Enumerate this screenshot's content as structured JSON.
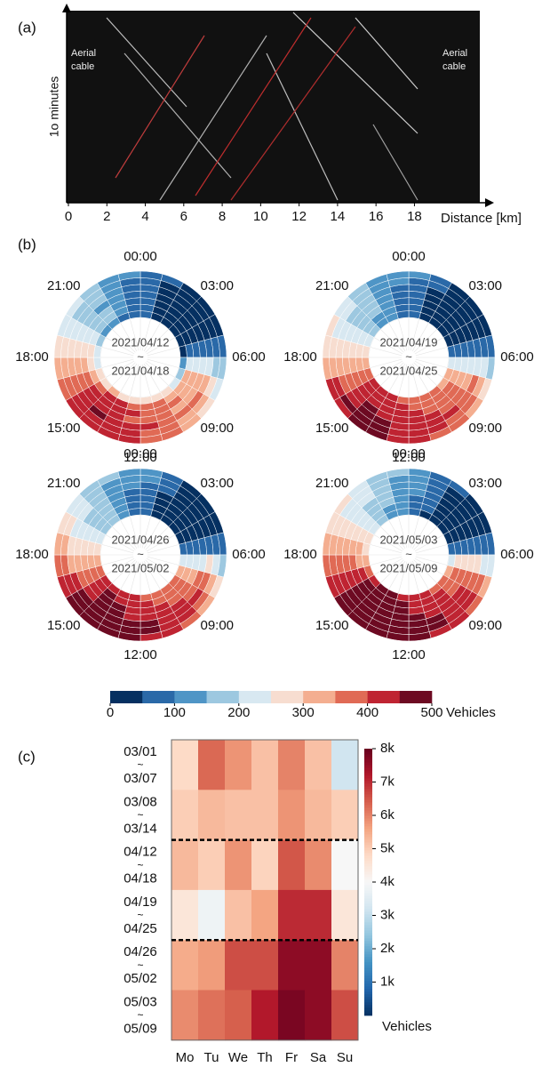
{
  "chart_data": [
    {
      "type": "image",
      "label": "(a)",
      "ylabel": "1o minutes",
      "xlabel": "Distance [km]",
      "xlim": [
        0,
        21.4
      ],
      "xticks": [
        0,
        2,
        4,
        6,
        8,
        10,
        12,
        14,
        16,
        18
      ],
      "annotations": [
        [
          "Aerial",
          "cable"
        ],
        [
          "Aerial",
          "cable"
        ]
      ]
    },
    {
      "type": "polar_heatmap",
      "label": "(b)",
      "clim": [
        0,
        500
      ],
      "cticks": [
        0,
        100,
        200,
        300,
        400,
        500
      ],
      "cbar_label": "Vehicles",
      "colors": [
        "#053061",
        "#2a69a8",
        "#4f95c6",
        "#9dc8e0",
        "#d8e8f1",
        "#f7ddd0",
        "#f4ae90",
        "#e06a55",
        "#bf2432",
        "#6d0a22"
      ],
      "hour_labels": [
        {
          "value": 0,
          "label": "00:00"
        },
        {
          "value": 3,
          "label": "03:00"
        },
        {
          "value": 6,
          "label": "06:00"
        },
        {
          "value": 9,
          "label": "09:00"
        },
        {
          "value": 12,
          "label": "12:00"
        },
        {
          "value": 15,
          "label": "15:00"
        },
        {
          "value": 18,
          "label": "18:00"
        },
        {
          "value": 21,
          "label": "21:00"
        }
      ],
      "charts": [
        {
          "start": "2021/04/12",
          "mark": "~",
          "end": "2021/04/18",
          "rings": [
            [
              50,
              30,
              20,
              20,
              20,
              40,
              120,
              180,
              230,
              250,
              260,
              270,
              280,
              290,
              300,
              290,
              260,
              230,
              200,
              170,
              140,
              120,
              90,
              70
            ],
            [
              60,
              30,
              20,
              20,
              30,
              60,
              200,
              300,
              330,
              340,
              360,
              370,
              380,
              400,
              410,
              390,
              340,
              290,
              250,
              200,
              170,
              150,
              110,
              80
            ],
            [
              60,
              30,
              20,
              20,
              30,
              60,
              210,
              310,
              340,
              350,
              370,
              380,
              400,
              420,
              430,
              400,
              350,
              300,
              260,
              210,
              180,
              150,
              110,
              80
            ],
            [
              70,
              40,
              20,
              20,
              30,
              60,
              200,
              300,
              330,
              340,
              360,
              380,
              390,
              410,
              420,
              400,
              350,
              300,
              250,
              200,
              170,
              140,
              100,
              80
            ],
            [
              70,
              40,
              20,
              20,
              30,
              70,
              220,
              320,
              350,
              370,
              380,
              400,
              420,
              440,
              450,
              420,
              370,
              310,
              270,
              220,
              180,
              150,
              120,
              90
            ],
            [
              80,
              40,
              30,
              20,
              30,
              60,
              190,
              280,
              320,
              340,
              360,
              380,
              400,
              430,
              440,
              410,
              360,
              310,
              270,
              230,
              190,
              160,
              120,
              90
            ],
            [
              90,
              50,
              30,
              20,
              30,
              50,
              150,
              230,
              290,
              320,
              350,
              380,
              400,
              420,
              430,
              410,
              370,
              320,
              280,
              240,
              200,
              170,
              130,
              100
            ]
          ]
        },
        {
          "start": "2021/04/19",
          "mark": "~",
          "end": "2021/04/25",
          "rings": [
            [
              60,
              30,
              20,
              20,
              30,
              60,
              210,
              310,
              340,
              360,
              370,
              380,
              390,
              410,
              420,
              400,
              350,
              300,
              260,
              210,
              170,
              140,
              100,
              80
            ],
            [
              60,
              30,
              20,
              20,
              30,
              60,
              220,
              320,
              350,
              360,
              370,
              390,
              400,
              420,
              430,
              410,
              360,
              310,
              260,
              210,
              170,
              140,
              110,
              80
            ],
            [
              70,
              40,
              20,
              20,
              30,
              60,
              220,
              330,
              360,
              370,
              380,
              400,
              410,
              430,
              440,
              410,
              360,
              310,
              270,
              220,
              180,
              150,
              110,
              90
            ],
            [
              70,
              40,
              20,
              20,
              30,
              70,
              230,
              340,
              370,
              380,
              400,
              410,
              420,
              440,
              450,
              420,
              370,
              320,
              270,
              220,
              180,
              150,
              120,
              90
            ],
            [
              80,
              40,
              30,
              20,
              30,
              70,
              240,
              350,
              380,
              400,
              410,
              420,
              440,
              460,
              470,
              440,
              380,
              330,
              280,
              230,
              190,
              160,
              120,
              90
            ],
            [
              90,
              50,
              30,
              20,
              30,
              60,
              200,
              300,
              360,
              380,
              400,
              420,
              440,
              460,
              470,
              450,
              400,
              340,
              290,
              240,
              200,
              170,
              130,
              100
            ],
            [
              100,
              60,
              30,
              20,
              30,
              50,
              160,
              250,
              320,
              350,
              380,
              410,
              430,
              450,
              460,
              440,
              400,
              340,
              290,
              250,
              210,
              180,
              140,
              110
            ]
          ]
        },
        {
          "start": "2021/04/26",
          "mark": "~",
          "end": "2021/05/02",
          "rings": [
            [
              60,
              30,
              20,
              20,
              30,
              60,
              220,
              320,
              350,
              360,
              370,
              390,
              400,
              420,
              430,
              410,
              360,
              310,
              270,
              220,
              180,
              150,
              110,
              80
            ],
            [
              70,
              40,
              20,
              20,
              30,
              70,
              230,
              330,
              360,
              380,
              390,
              400,
              420,
              440,
              450,
              420,
              370,
              320,
              270,
              220,
              180,
              150,
              110,
              90
            ],
            [
              70,
              40,
              20,
              20,
              30,
              70,
              240,
              340,
              370,
              390,
              400,
              420,
              430,
              450,
              460,
              430,
              380,
              320,
              280,
              230,
              190,
              160,
              120,
              90
            ],
            [
              80,
              40,
              30,
              20,
              30,
              70,
              240,
              350,
              380,
              400,
              410,
              430,
              440,
              460,
              470,
              440,
              390,
              330,
              280,
              230,
              190,
              160,
              120,
              90
            ],
            [
              90,
              50,
              30,
              20,
              30,
              80,
              250,
              360,
              400,
              420,
              430,
              450,
              470,
              480,
              490,
              460,
              400,
              340,
              290,
              240,
              200,
              170,
              130,
              100
            ],
            [
              100,
              50,
              30,
              20,
              30,
              70,
              220,
              330,
              380,
              410,
              430,
              450,
              470,
              490,
              490,
              470,
              420,
              360,
              300,
              250,
              210,
              180,
              140,
              110
            ],
            [
              110,
              60,
              40,
              30,
              30,
              60,
              180,
              270,
              340,
              380,
              410,
              440,
              460,
              480,
              480,
              460,
              420,
              360,
              300,
              260,
              220,
              190,
              150,
              120
            ]
          ]
        },
        {
          "start": "2021/05/03",
          "mark": "~",
          "end": "2021/05/09",
          "rings": [
            [
              80,
              40,
              30,
              20,
              30,
              70,
              240,
              340,
              370,
              390,
              400,
              420,
              430,
              450,
              460,
              430,
              380,
              330,
              290,
              250,
              210,
              170,
              130,
              100
            ],
            [
              90,
              50,
              30,
              20,
              40,
              80,
              250,
              350,
              380,
              400,
              410,
              430,
              450,
              470,
              480,
              450,
              400,
              340,
              300,
              260,
              220,
              180,
              140,
              110
            ],
            [
              90,
              50,
              30,
              30,
              40,
              80,
              260,
              360,
              390,
              410,
              420,
              440,
              460,
              480,
              490,
              460,
              410,
              350,
              310,
              260,
              220,
              190,
              150,
              110
            ],
            [
              100,
              60,
              40,
              30,
              40,
              90,
              260,
              370,
              400,
              420,
              440,
              450,
              470,
              490,
              490,
              470,
              420,
              360,
              310,
              270,
              230,
              190,
              150,
              120
            ],
            [
              110,
              60,
              40,
              30,
              40,
              90,
              270,
              380,
              420,
              440,
              450,
              470,
              480,
              490,
              490,
              480,
              430,
              370,
              320,
              270,
              230,
              200,
              160,
              130
            ],
            [
              120,
              70,
              40,
              30,
              40,
              80,
              240,
              350,
              400,
              430,
              450,
              470,
              490,
              490,
              490,
              480,
              440,
              380,
              330,
              280,
              240,
              210,
              170,
              140
            ],
            [
              140,
              80,
              50,
              40,
              40,
              70,
              200,
              300,
              370,
              410,
              440,
              460,
              480,
              490,
              490,
              480,
              440,
              390,
              340,
              290,
              250,
              220,
              180,
              150
            ]
          ]
        }
      ]
    },
    {
      "type": "heatmap",
      "label": "(c)",
      "columns": [
        "Mo",
        "Tu",
        "We",
        "Th",
        "Fr",
        "Sa",
        "Su"
      ],
      "rows": [
        {
          "start": "03/01",
          "mark": "~",
          "end": "03/07"
        },
        {
          "start": "03/08",
          "mark": "~",
          "end": "03/14"
        },
        {
          "start": "04/12",
          "mark": "~",
          "end": "04/18"
        },
        {
          "start": "04/19",
          "mark": "~",
          "end": "04/25"
        },
        {
          "start": "04/26",
          "mark": "~",
          "end": "05/02"
        },
        {
          "start": "05/03",
          "mark": "~",
          "end": "05/09"
        }
      ],
      "values": [
        [
          4800,
          6300,
          5800,
          5200,
          6000,
          5200,
          3200
        ],
        [
          5000,
          5300,
          5200,
          5200,
          5800,
          5300,
          5000
        ],
        [
          5300,
          5000,
          5800,
          4900,
          6500,
          5900,
          4000
        ],
        [
          4500,
          3800,
          5200,
          5600,
          7000,
          7000,
          4500
        ],
        [
          5500,
          5700,
          6600,
          6600,
          7600,
          7600,
          6000
        ],
        [
          5900,
          6200,
          6400,
          7200,
          7800,
          7600,
          6600
        ]
      ],
      "clim": [
        0,
        8000
      ],
      "separators_after": [
        2,
        4
      ],
      "colormap": [
        "#053061",
        "#2166ac",
        "#4393c3",
        "#92c5de",
        "#d1e5f0",
        "#f7f7f7",
        "#fddbc7",
        "#f4a582",
        "#d6604d",
        "#b2182b",
        "#67001f"
      ],
      "cticks": [
        {
          "value": 1000,
          "label": "1k"
        },
        {
          "value": 2000,
          "label": "2k"
        },
        {
          "value": 3000,
          "label": "3k"
        },
        {
          "value": 4000,
          "label": "4k"
        },
        {
          "value": 5000,
          "label": "5k"
        },
        {
          "value": 6000,
          "label": "6k"
        },
        {
          "value": 7000,
          "label": "7k"
        },
        {
          "value": 8000,
          "label": "8k"
        }
      ],
      "cbar_label": "Vehicles"
    }
  ]
}
